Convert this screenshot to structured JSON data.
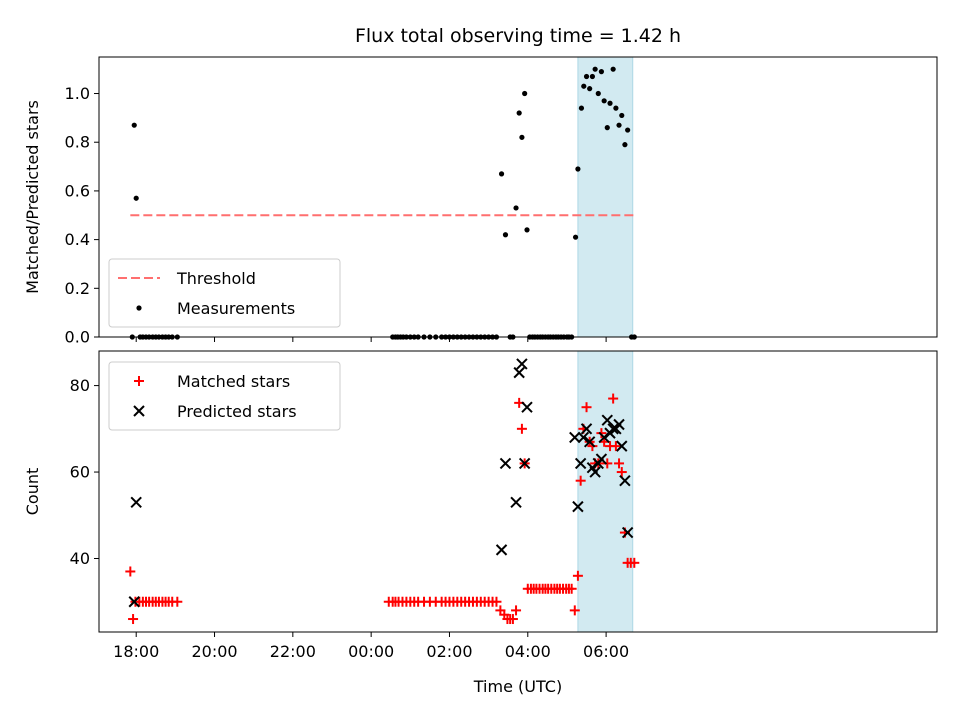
{
  "chart_data": {
    "title": "Flux total observing time = 1.42 h",
    "xlabel": "Time (UTC)",
    "x_unit": "hours since 17:00 UTC on the plotted night",
    "x_range_hours": [
      -0.95,
      20.45
    ],
    "x_ticks": [
      {
        "hours": 0,
        "label": "18:00"
      },
      {
        "hours": 2,
        "label": "20:00"
      },
      {
        "hours": 4,
        "label": "22:00"
      },
      {
        "hours": 6,
        "label": "00:00"
      },
      {
        "hours": 8,
        "label": "02:00"
      },
      {
        "hours": 10,
        "label": "04:00"
      },
      {
        "hours": 12,
        "label": "06:00"
      }
    ],
    "highlight_span_hours": [
      11.28,
      12.68
    ],
    "highlight_color": "#add8e6",
    "panels": [
      {
        "type": "scatter",
        "ylabel": "Matched/Predicted stars",
        "ylim": [
          0,
          1.15
        ],
        "yticks": [
          0.0,
          0.2,
          0.4,
          0.6,
          0.8,
          1.0
        ],
        "ytick_labels": [
          "0.0",
          "0.2",
          "0.4",
          "0.6",
          "0.8",
          "1.0"
        ],
        "show_x_tick_labels": false,
        "legend": {
          "position": "lower-left",
          "entries": [
            "Threshold",
            "Measurements"
          ]
        },
        "threshold": {
          "name": "Threshold",
          "value": 0.5,
          "x_range": [
            -0.15,
            12.75
          ],
          "color": "#ff6f6f",
          "style": "dashed"
        },
        "series": [
          {
            "name": "Measurements",
            "marker": "dot",
            "color": "#000000",
            "points": [
              [
                -0.1,
                0.0
              ],
              [
                -0.05,
                0.87
              ],
              [
                0.0,
                0.57
              ],
              [
                0.1,
                0.0
              ],
              [
                0.17,
                0.0
              ],
              [
                0.25,
                0.0
              ],
              [
                0.33,
                0.0
              ],
              [
                0.42,
                0.0
              ],
              [
                0.5,
                0.0
              ],
              [
                0.58,
                0.0
              ],
              [
                0.67,
                0.0
              ],
              [
                0.75,
                0.0
              ],
              [
                0.83,
                0.0
              ],
              [
                0.92,
                0.0
              ],
              [
                1.05,
                0.0
              ],
              [
                6.55,
                0.0
              ],
              [
                6.62,
                0.0
              ],
              [
                6.68,
                0.0
              ],
              [
                6.75,
                0.0
              ],
              [
                6.82,
                0.0
              ],
              [
                6.9,
                0.0
              ],
              [
                7.0,
                0.0
              ],
              [
                7.1,
                0.0
              ],
              [
                7.2,
                0.0
              ],
              [
                7.35,
                0.0
              ],
              [
                7.5,
                0.0
              ],
              [
                7.65,
                0.0
              ],
              [
                7.8,
                0.0
              ],
              [
                7.9,
                0.0
              ],
              [
                8.0,
                0.0
              ],
              [
                8.1,
                0.0
              ],
              [
                8.2,
                0.0
              ],
              [
                8.3,
                0.0
              ],
              [
                8.4,
                0.0
              ],
              [
                8.5,
                0.0
              ],
              [
                8.6,
                0.0
              ],
              [
                8.7,
                0.0
              ],
              [
                8.8,
                0.0
              ],
              [
                8.9,
                0.0
              ],
              [
                9.0,
                0.0
              ],
              [
                9.1,
                0.0
              ],
              [
                9.2,
                0.0
              ],
              [
                9.33,
                0.67
              ],
              [
                9.43,
                0.42
              ],
              [
                9.55,
                0.0
              ],
              [
                9.62,
                0.0
              ],
              [
                9.7,
                0.53
              ],
              [
                9.78,
                0.92
              ],
              [
                9.85,
                0.82
              ],
              [
                9.92,
                1.0
              ],
              [
                9.98,
                0.44
              ],
              [
                10.05,
                0.0
              ],
              [
                10.12,
                0.0
              ],
              [
                10.18,
                0.0
              ],
              [
                10.25,
                0.0
              ],
              [
                10.32,
                0.0
              ],
              [
                10.38,
                0.0
              ],
              [
                10.45,
                0.0
              ],
              [
                10.52,
                0.0
              ],
              [
                10.58,
                0.0
              ],
              [
                10.65,
                0.0
              ],
              [
                10.72,
                0.0
              ],
              [
                10.78,
                0.0
              ],
              [
                10.85,
                0.0
              ],
              [
                10.92,
                0.0
              ],
              [
                11.0,
                0.0
              ],
              [
                11.05,
                0.0
              ],
              [
                11.12,
                0.0
              ],
              [
                11.22,
                0.41
              ],
              [
                11.28,
                0.69
              ],
              [
                11.37,
                0.94
              ],
              [
                11.43,
                1.03
              ],
              [
                11.5,
                1.07
              ],
              [
                11.58,
                1.02
              ],
              [
                11.65,
                1.07
              ],
              [
                11.72,
                1.1
              ],
              [
                11.8,
                1.0
              ],
              [
                11.88,
                1.09
              ],
              [
                11.95,
                0.97
              ],
              [
                12.03,
                0.86
              ],
              [
                12.1,
                0.96
              ],
              [
                12.18,
                1.1
              ],
              [
                12.25,
                0.94
              ],
              [
                12.33,
                0.87
              ],
              [
                12.4,
                0.91
              ],
              [
                12.48,
                0.79
              ],
              [
                12.55,
                0.85
              ],
              [
                12.65,
                0.0
              ],
              [
                12.72,
                0.0
              ]
            ]
          }
        ]
      },
      {
        "type": "scatter",
        "ylabel": "Count",
        "ylim": [
          23,
          88
        ],
        "yticks": [
          40,
          60,
          80
        ],
        "ytick_labels": [
          "40",
          "60",
          "80"
        ],
        "show_x_tick_labels": true,
        "legend": {
          "position": "upper-left",
          "entries": [
            "Matched stars",
            "Predicted stars"
          ]
        },
        "series": [
          {
            "name": "Matched stars",
            "marker": "plus",
            "color": "#ff0000",
            "points": [
              [
                -0.15,
                37
              ],
              [
                -0.08,
                26
              ],
              [
                -0.02,
                30
              ],
              [
                0.08,
                30
              ],
              [
                0.17,
                30
              ],
              [
                0.25,
                30
              ],
              [
                0.33,
                30
              ],
              [
                0.42,
                30
              ],
              [
                0.5,
                30
              ],
              [
                0.58,
                30
              ],
              [
                0.67,
                30
              ],
              [
                0.75,
                30
              ],
              [
                0.83,
                30
              ],
              [
                0.92,
                30
              ],
              [
                1.05,
                30
              ],
              [
                6.45,
                30
              ],
              [
                6.55,
                30
              ],
              [
                6.62,
                30
              ],
              [
                6.7,
                30
              ],
              [
                6.8,
                30
              ],
              [
                6.9,
                30
              ],
              [
                7.0,
                30
              ],
              [
                7.1,
                30
              ],
              [
                7.2,
                30
              ],
              [
                7.35,
                30
              ],
              [
                7.5,
                30
              ],
              [
                7.65,
                30
              ],
              [
                7.8,
                30
              ],
              [
                7.9,
                30
              ],
              [
                8.0,
                30
              ],
              [
                8.1,
                30
              ],
              [
                8.2,
                30
              ],
              [
                8.3,
                30
              ],
              [
                8.4,
                30
              ],
              [
                8.5,
                30
              ],
              [
                8.6,
                30
              ],
              [
                8.7,
                30
              ],
              [
                8.8,
                30
              ],
              [
                8.9,
                30
              ],
              [
                9.0,
                30
              ],
              [
                9.1,
                30
              ],
              [
                9.2,
                30
              ],
              [
                9.3,
                28
              ],
              [
                9.4,
                27
              ],
              [
                9.48,
                26
              ],
              [
                9.55,
                26
              ],
              [
                9.62,
                26
              ],
              [
                9.7,
                28
              ],
              [
                9.78,
                76
              ],
              [
                9.85,
                70
              ],
              [
                9.92,
                62
              ],
              [
                10.0,
                33
              ],
              [
                10.08,
                33
              ],
              [
                10.15,
                33
              ],
              [
                10.22,
                33
              ],
              [
                10.3,
                33
              ],
              [
                10.38,
                33
              ],
              [
                10.45,
                33
              ],
              [
                10.52,
                33
              ],
              [
                10.6,
                33
              ],
              [
                10.68,
                33
              ],
              [
                10.75,
                33
              ],
              [
                10.82,
                33
              ],
              [
                10.9,
                33
              ],
              [
                10.98,
                33
              ],
              [
                11.05,
                33
              ],
              [
                11.12,
                33
              ],
              [
                11.2,
                28
              ],
              [
                11.28,
                36
              ],
              [
                11.35,
                58
              ],
              [
                11.42,
                70
              ],
              [
                11.5,
                75
              ],
              [
                11.58,
                67
              ],
              [
                11.65,
                66
              ],
              [
                11.72,
                62
              ],
              [
                11.8,
                62
              ],
              [
                11.88,
                69
              ],
              [
                11.95,
                67
              ],
              [
                12.03,
                62
              ],
              [
                12.1,
                66
              ],
              [
                12.18,
                77
              ],
              [
                12.25,
                66
              ],
              [
                12.33,
                62
              ],
              [
                12.4,
                60
              ],
              [
                12.48,
                46
              ],
              [
                12.55,
                39
              ],
              [
                12.63,
                39
              ],
              [
                12.72,
                39
              ]
            ]
          },
          {
            "name": "Predicted stars",
            "marker": "x",
            "color": "#000000",
            "points": [
              [
                -0.05,
                30
              ],
              [
                0.0,
                53
              ],
              [
                9.33,
                42
              ],
              [
                9.43,
                62
              ],
              [
                9.7,
                53
              ],
              [
                9.78,
                83
              ],
              [
                9.85,
                85
              ],
              [
                9.92,
                62
              ],
              [
                9.98,
                75
              ],
              [
                11.2,
                68
              ],
              [
                11.28,
                52
              ],
              [
                11.35,
                62
              ],
              [
                11.42,
                68
              ],
              [
                11.5,
                70
              ],
              [
                11.58,
                67
              ],
              [
                11.65,
                61
              ],
              [
                11.72,
                60
              ],
              [
                11.8,
                62
              ],
              [
                11.88,
                63
              ],
              [
                11.95,
                68
              ],
              [
                12.03,
                72
              ],
              [
                12.1,
                69
              ],
              [
                12.18,
                70
              ],
              [
                12.25,
                70
              ],
              [
                12.33,
                71
              ],
              [
                12.4,
                66
              ],
              [
                12.48,
                58
              ],
              [
                12.55,
                46
              ]
            ]
          }
        ]
      }
    ]
  }
}
